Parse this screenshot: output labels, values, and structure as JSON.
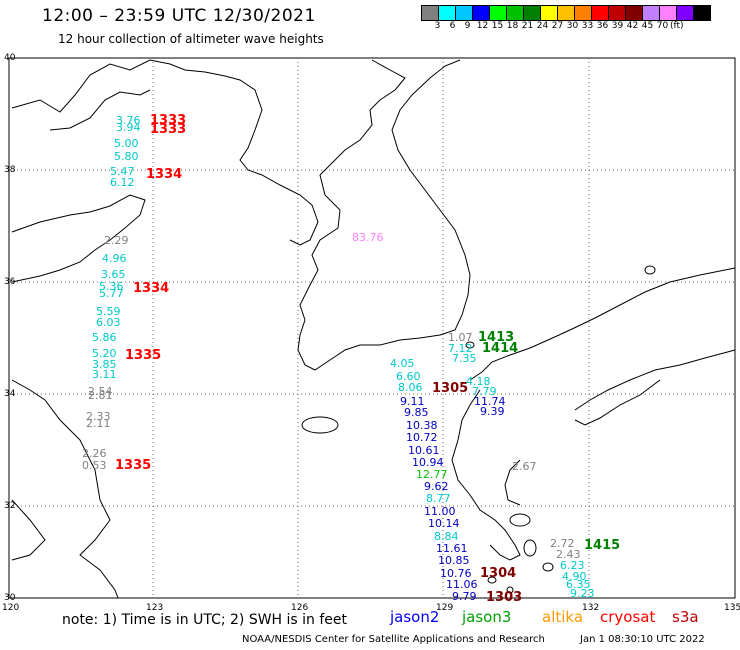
{
  "header": {
    "title": "12:00 – 23:59 UTC 12/30/2021",
    "subtitle": "12 hour collection of altimeter wave heights"
  },
  "legend": {
    "colors": [
      "#808080",
      "#00ffff",
      "#00c8ff",
      "#0000ff",
      "#00ff00",
      "#00c000",
      "#008000",
      "#ffff00",
      "#ffc000",
      "#ff8000",
      "#ff0000",
      "#c00000",
      "#800000",
      "#c080ff",
      "#ff80ff",
      "#8000ff",
      "#000000"
    ],
    "labels": [
      "3",
      "6",
      "9",
      "12",
      "15",
      "18",
      "21",
      "24",
      "27",
      "30",
      "33",
      "36",
      "39",
      "42",
      "45",
      "70"
    ],
    "unit": "(ft)"
  },
  "axes": {
    "lon_labels": [
      "120",
      "123",
      "126",
      "129",
      "132",
      "135"
    ],
    "lat_labels": [
      "40",
      "38",
      "36",
      "34",
      "32",
      "30"
    ]
  },
  "readings": [
    {
      "text": "3.76",
      "color": "#00c8c8"
    },
    {
      "text": "3.94",
      "color": "#00c8c8"
    },
    {
      "text": "5.00",
      "color": "#00c8c8"
    },
    {
      "text": "5.80",
      "color": "#00c8c8"
    },
    {
      "text": "5.47",
      "color": "#00c8c8"
    },
    {
      "text": "6.12",
      "color": "#00c8c8"
    },
    {
      "text": "2.29",
      "color": "#808080"
    },
    {
      "text": "4.96",
      "color": "#00c8c8"
    },
    {
      "text": "3.65",
      "color": "#00c8c8"
    },
    {
      "text": "5.36",
      "color": "#00c8c8"
    },
    {
      "text": "5.77",
      "color": "#00c8c8"
    },
    {
      "text": "5.59",
      "color": "#00c8c8"
    },
    {
      "text": "6.03",
      "color": "#00c8c8"
    },
    {
      "text": "5.86",
      "color": "#00c8c8"
    },
    {
      "text": "5.20",
      "color": "#00c8c8"
    },
    {
      "text": "3.85",
      "color": "#00c8c8"
    },
    {
      "text": "3.11",
      "color": "#00c8c8"
    },
    {
      "text": "2.54",
      "color": "#808080"
    },
    {
      "text": "2.81",
      "color": "#808080"
    },
    {
      "text": "2.33",
      "color": "#808080"
    },
    {
      "text": "2.11",
      "color": "#808080"
    },
    {
      "text": "2.26",
      "color": "#808080"
    },
    {
      "text": "0.53",
      "color": "#808080"
    },
    {
      "text": "83.76",
      "color": "#ff80ff"
    },
    {
      "text": "1.07",
      "color": "#808080"
    },
    {
      "text": "7.12",
      "color": "#00c8c8"
    },
    {
      "text": "7.35",
      "color": "#00c8c8"
    },
    {
      "text": "4.05",
      "color": "#00c8c8"
    },
    {
      "text": "6.60",
      "color": "#00c8c8"
    },
    {
      "text": "8.06",
      "color": "#00c8c8"
    },
    {
      "text": "4.18",
      "color": "#00c8c8"
    },
    {
      "text": "7.79",
      "color": "#00c8c8"
    },
    {
      "text": "11.74",
      "color": "#0000c0"
    },
    {
      "text": "9.39",
      "color": "#0000c0"
    },
    {
      "text": "9.11",
      "color": "#0000c0"
    },
    {
      "text": "9.85",
      "color": "#0000c0"
    },
    {
      "text": "10.38",
      "color": "#0000c0"
    },
    {
      "text": "10.72",
      "color": "#0000c0"
    },
    {
      "text": "10.61",
      "color": "#0000c0"
    },
    {
      "text": "10.94",
      "color": "#0000c0"
    },
    {
      "text": "12.77",
      "color": "#00c000"
    },
    {
      "text": "2.67",
      "color": "#808080"
    },
    {
      "text": "9.62",
      "color": "#0000c0"
    },
    {
      "text": "8.77",
      "color": "#00c8c8"
    },
    {
      "text": "11.00",
      "color": "#0000c0"
    },
    {
      "text": "10.14",
      "color": "#0000c0"
    },
    {
      "text": "8.84",
      "color": "#00c8c8"
    },
    {
      "text": "11.61",
      "color": "#0000c0"
    },
    {
      "text": "10.85",
      "color": "#0000c0"
    },
    {
      "text": "10.76",
      "color": "#0000c0"
    },
    {
      "text": "11.06",
      "color": "#0000c0"
    },
    {
      "text": "9.79",
      "color": "#0000c0"
    },
    {
      "text": "2.72",
      "color": "#808080"
    },
    {
      "text": "2.43",
      "color": "#808080"
    },
    {
      "text": "6.23",
      "color": "#00c8c8"
    },
    {
      "text": "4.90",
      "color": "#00c8c8"
    },
    {
      "text": "6.35",
      "color": "#00c8c8"
    },
    {
      "text": "9.23",
      "color": "#00c8c8"
    }
  ],
  "pass_times": [
    {
      "text": "1333",
      "color": "#ff0000"
    },
    {
      "text": "1333",
      "color": "#ff0000"
    },
    {
      "text": "1334",
      "color": "#ff0000"
    },
    {
      "text": "1334",
      "color": "#ff0000"
    },
    {
      "text": "1335",
      "color": "#ff0000"
    },
    {
      "text": "1335",
      "color": "#ff0000"
    },
    {
      "text": "1413",
      "color": "#008000"
    },
    {
      "text": "1414",
      "color": "#008000"
    },
    {
      "text": "1305",
      "color": "#800000"
    },
    {
      "text": "1415",
      "color": "#008000"
    },
    {
      "text": "1304",
      "color": "#800000"
    },
    {
      "text": "1303",
      "color": "#800000"
    }
  ],
  "footer": {
    "note": "note:  1) Time is in UTC;  2) SWH is in feet",
    "satellites": [
      {
        "name": "jason2",
        "color": "#0000ff"
      },
      {
        "name": "jason3",
        "color": "#00a000"
      },
      {
        "name": "altika",
        "color": "#ff9900"
      },
      {
        "name": "cryosat",
        "color": "#ff0000"
      },
      {
        "name": "s3a",
        "color": "#c00000"
      }
    ],
    "credit": "NOAA/NESDIS Center for Satellite Applications and Research",
    "timestamp": "Jan  1 08:30:10 UTC 2022"
  }
}
